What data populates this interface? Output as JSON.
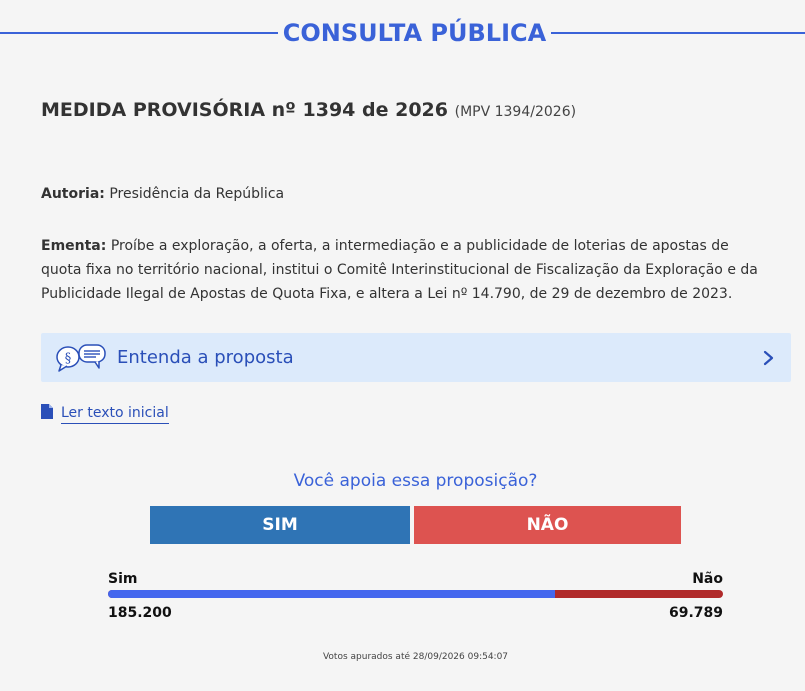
{
  "header": {
    "title": "CONSULTA PÚBLICA"
  },
  "proposition": {
    "title": "MEDIDA PROVISÓRIA nº 1394 de 2026",
    "abbreviation": "(MPV 1394/2026)"
  },
  "autoria": {
    "label": "Autoria:",
    "value": "Presidência da República"
  },
  "ementa": {
    "label": "Ementa:",
    "value": "Proíbe a exploração, a oferta, a intermediação e a publicidade de loterias de apostas de quota fixa no território nacional, institui o Comitê Interinstitucional de Fiscalização da Exploração e da Publicidade Ilegal de Apostas de Quota Fixa, e altera a Lei nº 14.790, de 29 de dezembro de 2023."
  },
  "entenda": {
    "label": "Entenda a proposta",
    "icon": "speech-bubbles-icon"
  },
  "ler_texto": {
    "label": "Ler texto inicial",
    "icon": "document-icon"
  },
  "vote": {
    "question": "Você apoia essa proposição?",
    "sim_label": "SIM",
    "nao_label": "NÃO"
  },
  "results": {
    "sim_label": "Sim",
    "nao_label": "Não",
    "sim_count": "185.200",
    "nao_count": "69.789",
    "sim_fraction": 0.7263
  },
  "footnote": "Votos apurados até 28/09/2026 09:54:07",
  "colors": {
    "accent": "#3a62d8",
    "link": "#2a4fb8",
    "sim_button": "#2f74b5",
    "nao_button": "#dd5350",
    "bar_sim": "#4467ee",
    "bar_nao": "#b02a2a",
    "entenda_bg": "#dceafb"
  }
}
